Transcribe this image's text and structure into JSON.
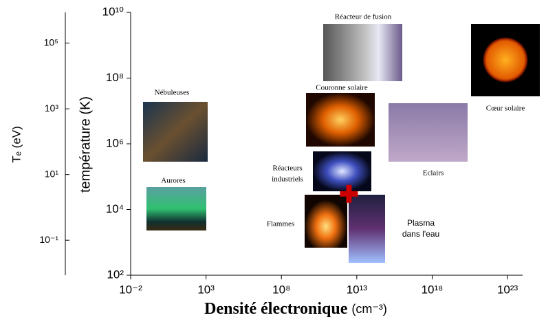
{
  "chart_data": {
    "type": "scatter",
    "x_label": "Densité électronique",
    "x_unit": "(cm⁻³)",
    "y_label": "température (K)",
    "y2_label": "Tₑ (eV)",
    "x": [
      3000000000000
    ],
    "values": [
      30000
    ],
    "color": "#cc0000",
    "log_x": true,
    "log_y": true,
    "xlim": [
      0.01,
      1e+24
    ],
    "xticks": [
      {
        "value": 0.01,
        "label": "10⁻²"
      },
      {
        "value": 1000,
        "label": "10³"
      },
      {
        "value": 100000000,
        "label": "10⁸"
      },
      {
        "value": 10000000000000,
        "label": "10¹³"
      },
      {
        "value": 1e+18,
        "label": "10¹⁸"
      },
      {
        "value": 1e+23,
        "label": "10²³"
      }
    ],
    "ylim": [
      100,
      10000000000
    ],
    "yticks": [
      {
        "value": 100,
        "label": "10²"
      },
      {
        "value": 10000,
        "label": "10⁴"
      },
      {
        "value": 1000000,
        "label": "10⁶"
      },
      {
        "value": 100000000,
        "label": "10⁸"
      },
      {
        "value": 10000000000,
        "label": "10¹⁰"
      }
    ],
    "y2lim": [
      0.00862,
      861700
    ],
    "y2ticks": [
      {
        "value": 0.1,
        "label": "10⁻¹"
      },
      {
        "value": 10,
        "label": "10¹"
      },
      {
        "value": 1000,
        "label": "10³"
      },
      {
        "value": 100000,
        "label": "10⁵"
      }
    ],
    "annotations": [
      {
        "lines": [
          "Réacteur de fusion"
        ]
      },
      {
        "lines": [
          "Cœur solaire"
        ]
      },
      {
        "lines": [
          "Nébuleuses"
        ]
      },
      {
        "lines": [
          "Couronne solaire"
        ]
      },
      {
        "lines": [
          "Eclairs"
        ]
      },
      {
        "lines": [
          "Réacteurs",
          "industriels"
        ]
      },
      {
        "lines": [
          "Aurores"
        ]
      },
      {
        "lines": [
          "Flammes"
        ]
      },
      {
        "lines": [
          "Plasma",
          "dans l'eau"
        ]
      }
    ]
  }
}
